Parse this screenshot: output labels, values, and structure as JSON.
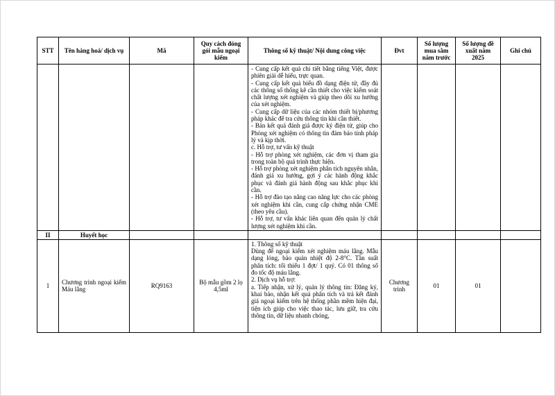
{
  "table": {
    "columns": [
      "STT",
      "Tên hàng hoá/ dịch vụ",
      "Mã",
      "Quy cách đóng gói mẫu ngoại kiểm",
      "Thông số kỹ thuật/ Nội dung công việc",
      "Đvt",
      "Số lượng mua sắm năm trước",
      "Số lượng đề xuất năm 2025",
      "Ghi chú"
    ],
    "continuation": [
      "- Cung cấp kết quả chi tiết bằng tiếng Việt, được phiên giải dễ hiểu, trực quan.",
      "- Cung cấp kết quả biểu đồ dạng điện tử, đầy đủ các thông số thống kê cần thiết cho việc kiểm soát chất lượng xét nghiệm và giúp theo dõi xu hướng của xét nghiệm.",
      "- Cung cấp dữ liệu của các nhóm thiết bị/phương pháp khác để tra cứu thông tin khi cần thiết.",
      "- Bản kết quả đánh giá được ký điện tử, giúp cho Phòng xét nghiệm có thông tin đảm bảo tính pháp lý và kịp thời.",
      "c. Hỗ trợ, tư vấn kỹ thuật",
      "- Hỗ trợ phòng xét nghiệm, các đơn vị tham gia trong toàn bộ quá trình thực hiện.",
      "- Hỗ trợ phòng xét nghiệm phân tích nguyên nhân, đánh giá xu hướng, gợi ý các hành động khắc phục và đánh giá hành động sau khắc phục khi cần.",
      "- Hỗ trợ đào tạo nâng cao năng lực cho các phòng xét nghiệm khi cần, cung cấp chứng nhận CME (theo yêu cầu).",
      "- Hỗ trợ, tư vấn khác liên quan đến quản lý chất lượng xét nghiệm khi cần."
    ],
    "section": {
      "number": "II",
      "name": "Huyết học"
    },
    "row": {
      "stt": "1",
      "name": "Chương trình ngoại kiểm Máu lắng",
      "code": "RQ9163",
      "packaging": "Bộ mẫu gồm 2 lọ 4,5ml",
      "spec": [
        "1. Thông số kỹ thuật",
        "Dùng để ngoại kiểm xét nghiệm máu lắng. Mẫu dạng lỏng, bảo quản nhiệt độ 2-8°C. Tần suất phân tích: tối thiểu 1 đợt/ 1 quý. Có 01 thông số đo tốc độ máu lắng.",
        "2. Dịch vụ hỗ trợ:",
        "a. Tiếp nhận, xử lý, quản lý thông tin: Đăng ký, khai báo, nhận kết quả phân tích và trả kết đánh giá ngoại kiểm trên hệ thống phần mềm hiện đại, tiện ích giúp cho việc thao tác, lưu giữ, tra cứu thông tin, dữ liệu nhanh chóng,"
      ],
      "unit": "Chương trình",
      "previous": "01",
      "proposed": "01",
      "note": ""
    }
  }
}
